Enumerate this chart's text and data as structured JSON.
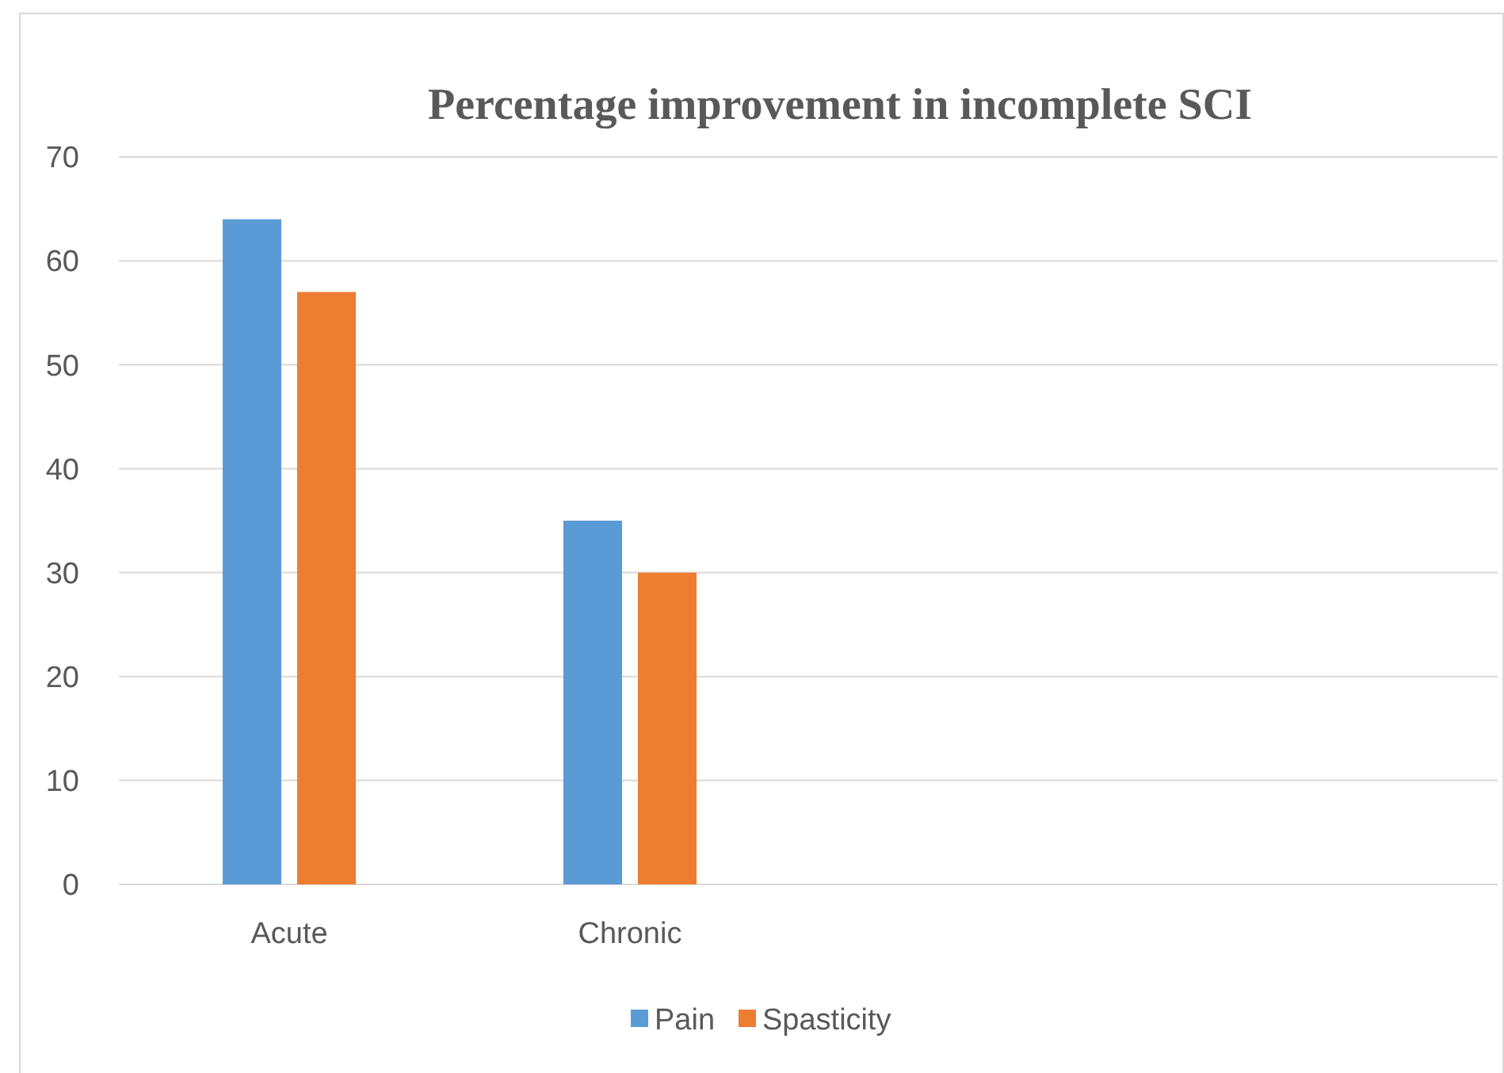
{
  "chart_data": {
    "type": "bar",
    "title": "Percentage improvement in incomplete SCI",
    "categories": [
      "Acute",
      "Chronic",
      null,
      null
    ],
    "series": [
      {
        "name": "Pain",
        "color": "#5b9bd5",
        "values": [
          64,
          35,
          null,
          null
        ]
      },
      {
        "name": "Spasticity",
        "color": "#ed7d31",
        "values": [
          57,
          30,
          null,
          null
        ]
      }
    ],
    "ylim": [
      0,
      70
    ],
    "yticks": [
      0,
      10,
      20,
      30,
      40,
      50,
      60,
      70
    ],
    "grid": "y",
    "legend": "bottom"
  }
}
